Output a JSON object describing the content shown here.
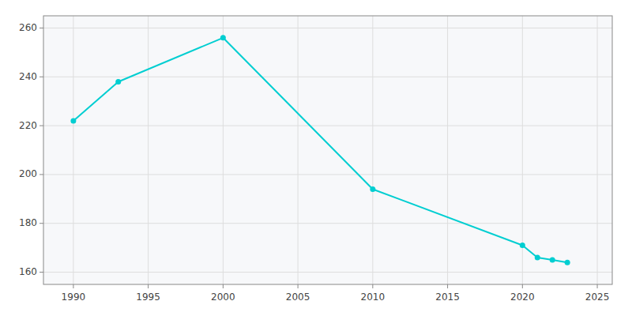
{
  "chart_data": {
    "type": "line",
    "x": [
      1990,
      1993,
      2000,
      2010,
      2020,
      2021,
      2022,
      2023
    ],
    "values": [
      222,
      238,
      256,
      194,
      171,
      166,
      165,
      164
    ],
    "color": "#00CED1",
    "marker": "circle",
    "xlim": [
      1988,
      2026
    ],
    "ylim": [
      155,
      265
    ],
    "xticks": [
      1990,
      1995,
      2000,
      2005,
      2010,
      2015,
      2020,
      2025
    ],
    "yticks": [
      160,
      180,
      200,
      220,
      240,
      260
    ],
    "grid": true
  }
}
